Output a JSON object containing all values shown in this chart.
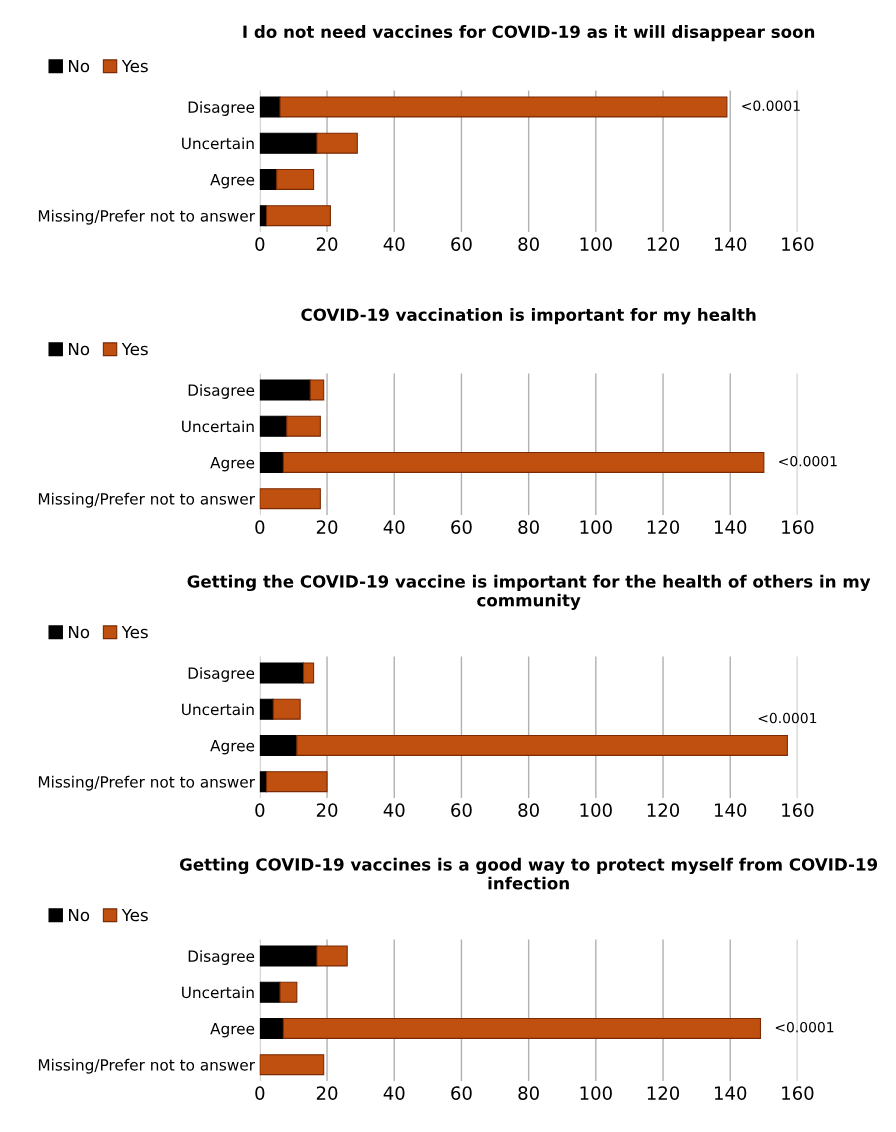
{
  "chart_data": [
    {
      "type": "bar",
      "orientation": "horizontal",
      "stacked": true,
      "title": "I do not need vaccines for COVID-19 as it will disappear soon",
      "categories": [
        "Disagree",
        "Uncertain",
        "Agree",
        "Missing/Prefer not to answer"
      ],
      "series": [
        {
          "name": "No",
          "color": "#000000",
          "values": [
            6,
            17,
            5,
            2
          ]
        },
        {
          "name": "Yes",
          "color": "#c0500f",
          "values": [
            133,
            12,
            11,
            19
          ]
        }
      ],
      "xlim": [
        0,
        160
      ],
      "xticks": [
        0,
        20,
        40,
        60,
        80,
        100,
        120,
        140,
        160
      ],
      "grid": "x",
      "legend": "top left",
      "annotations": [
        {
          "text": "<0.0001",
          "x": 139,
          "y": "Disagree"
        }
      ]
    },
    {
      "type": "bar",
      "orientation": "horizontal",
      "stacked": true,
      "title": "COVID-19 vaccination is important for my health",
      "categories": [
        "Disagree",
        "Uncertain",
        "Agree",
        "Missing/Prefer not to answer"
      ],
      "series": [
        {
          "name": "No",
          "color": "#000000",
          "values": [
            15,
            8,
            7,
            0
          ]
        },
        {
          "name": "Yes",
          "color": "#c0500f",
          "values": [
            4,
            10,
            143,
            18
          ]
        }
      ],
      "xlim": [
        0,
        160
      ],
      "xticks": [
        0,
        20,
        40,
        60,
        80,
        100,
        120,
        140,
        160
      ],
      "grid": "x",
      "legend": "top left",
      "annotations": [
        {
          "text": "<0.0001",
          "x": 150,
          "y": "Agree"
        }
      ]
    },
    {
      "type": "bar",
      "orientation": "horizontal",
      "stacked": true,
      "title": "Getting the COVID-19 vaccine is important for the health of others in my community",
      "categories": [
        "Disagree",
        "Uncertain",
        "Agree",
        "Missing/Prefer not to answer"
      ],
      "series": [
        {
          "name": "No",
          "color": "#000000",
          "values": [
            13,
            4,
            11,
            2
          ]
        },
        {
          "name": "Yes",
          "color": "#c0500f",
          "values": [
            3,
            8,
            146,
            18
          ]
        }
      ],
      "xlim": [
        0,
        160
      ],
      "xticks": [
        0,
        20,
        40,
        60,
        80,
        100,
        120,
        140,
        160
      ],
      "grid": "x",
      "legend": "top left",
      "annotations": [
        {
          "text": "<0.0001",
          "x": 157,
          "y": "Agree"
        }
      ]
    },
    {
      "type": "bar",
      "orientation": "horizontal",
      "stacked": true,
      "title": "Getting COVID-19 vaccines is a good way to protect myself from COVID-19 infection",
      "categories": [
        "Disagree",
        "Uncertain",
        "Agree",
        "Missing/Prefer not to answer"
      ],
      "series": [
        {
          "name": "No",
          "color": "#000000",
          "values": [
            17,
            6,
            7,
            0
          ]
        },
        {
          "name": "Yes",
          "color": "#c0500f",
          "values": [
            9,
            5,
            142,
            19
          ]
        }
      ],
      "xlim": [
        0,
        160
      ],
      "xticks": [
        0,
        20,
        40,
        60,
        80,
        100,
        120,
        140,
        160
      ],
      "grid": "x",
      "legend": "top left",
      "annotations": [
        {
          "text": "<0.0001",
          "x": 149,
          "y": "Agree"
        }
      ]
    }
  ]
}
